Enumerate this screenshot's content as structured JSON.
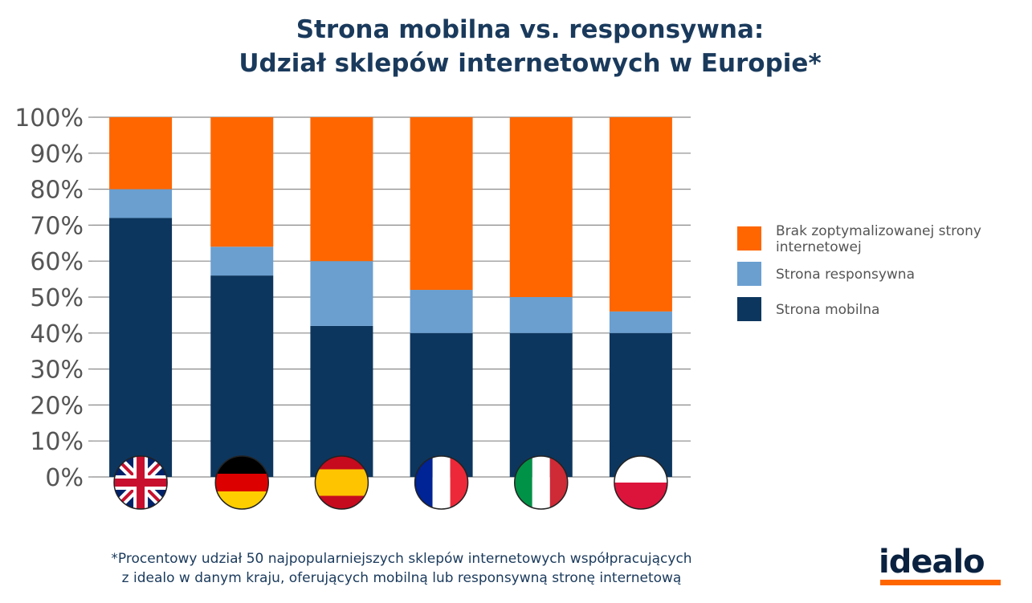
{
  "title_line1": "Strona mobilna vs. responsywna:",
  "title_line2": "Udział sklepów internetowych w Europie*",
  "chart_data": {
    "type": "bar",
    "stacked": true,
    "categories": [
      "UK",
      "Germany",
      "Spain",
      "France",
      "Italy",
      "Poland"
    ],
    "series": [
      {
        "name": "Strona mobilna",
        "color": "#0d365e",
        "values": [
          72,
          56,
          42,
          40,
          40,
          40
        ]
      },
      {
        "name": "Strona responsywna",
        "color": "#6a9fd0",
        "values": [
          8,
          8,
          18,
          12,
          10,
          6
        ]
      },
      {
        "name": "Brak zoptymalizowanej strony internetowej",
        "color": "#ff6600",
        "values": [
          20,
          36,
          40,
          48,
          50,
          54
        ]
      }
    ],
    "yticks": [
      "0%",
      "10%",
      "20%",
      "30%",
      "40%",
      "50%",
      "60%",
      "70%",
      "80%",
      "90%",
      "100%"
    ],
    "ylim": [
      0,
      100
    ],
    "grid": true,
    "legend_position": "right"
  },
  "legend": [
    {
      "label": "Brak zoptymalizowanej strony internetowej",
      "color": "#ff6600"
    },
    {
      "label": "Strona responsywna",
      "color": "#6a9fd0"
    },
    {
      "label": "Strona mobilna",
      "color": "#0d365e"
    }
  ],
  "flags": [
    {
      "country": "UK",
      "icon": "uk-flag-icon"
    },
    {
      "country": "Germany",
      "icon": "germany-flag-icon"
    },
    {
      "country": "Spain",
      "icon": "spain-flag-icon"
    },
    {
      "country": "France",
      "icon": "france-flag-icon"
    },
    {
      "country": "Italy",
      "icon": "italy-flag-icon"
    },
    {
      "country": "Poland",
      "icon": "poland-flag-icon"
    }
  ],
  "footnote_line1": "*Procentowy udział 50 najpopularniejszych sklepów internetowych współpracujących",
  "footnote_line2": "z idealo w danym kraju, oferujących mobilną lub responsywną stronę internetową",
  "logo_text": "idealo",
  "colors": {
    "title": "#1a3a5c",
    "grid": "#8a8a8a",
    "axis_text": "#555555",
    "brand": "#ff6600"
  }
}
